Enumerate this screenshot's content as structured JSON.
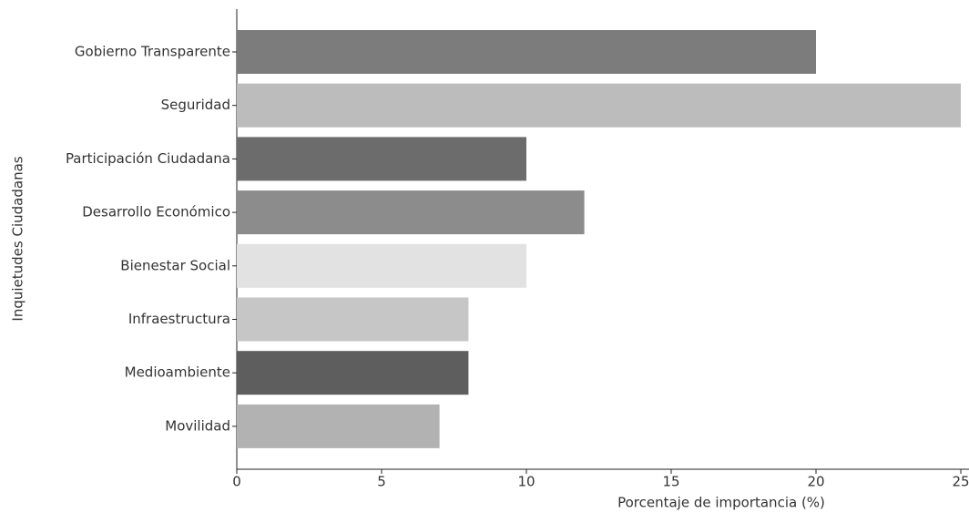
{
  "chart_data": {
    "type": "bar",
    "orientation": "horizontal",
    "xlabel": "Porcentaje de importancia (%)",
    "ylabel": "Inquietudes Ciudadanas",
    "categories": [
      "Gobierno Transparente",
      "Seguridad",
      "Participación Ciudadana",
      "Desarrollo Económico",
      "Bienestar Social",
      "Infraestructura",
      "Medioambiente",
      "Movilidad"
    ],
    "values": [
      20,
      25,
      10,
      12,
      10,
      8,
      8,
      7
    ],
    "colors": [
      "#7c7c7c",
      "#bcbcbc",
      "#6c6c6c",
      "#8c8c8c",
      "#e2e2e2",
      "#c6c6c6",
      "#5e5e5e",
      "#b2b2b2"
    ],
    "xlim": [
      0,
      25
    ],
    "xticks": [
      0,
      5,
      10,
      15,
      20,
      25
    ],
    "grid": false
  }
}
